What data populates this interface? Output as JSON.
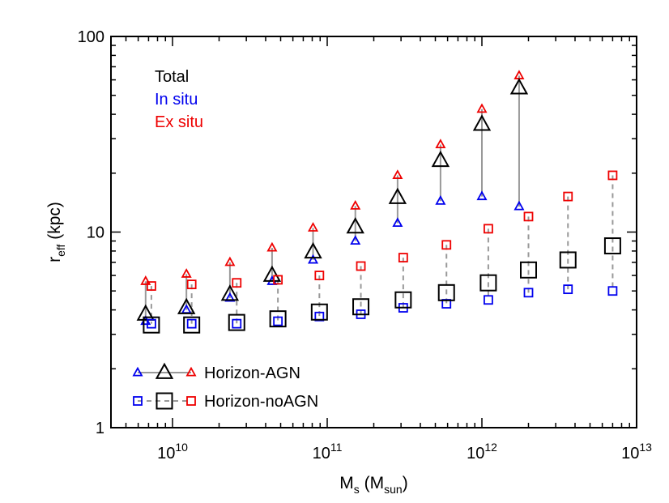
{
  "chart_data": {
    "type": "scatter",
    "xlabel": {
      "main": "M",
      "main_sub": "s",
      "paren": "M",
      "paren_sub": "sun"
    },
    "ylabel": {
      "main": "r",
      "main_sub": "eff",
      "rest": "(kpc)"
    },
    "x_scale": "log",
    "y_scale": "log",
    "xlim": [
      4000000000.0,
      10000000000000.0
    ],
    "ylim": [
      1,
      100
    ],
    "x_ticks": [
      {
        "base": "10",
        "exp": "10"
      },
      {
        "base": "10",
        "exp": "11"
      },
      {
        "base": "10",
        "exp": "12"
      },
      {
        "base": "10",
        "exp": "13"
      }
    ],
    "y_ticks": [
      "1",
      "10",
      "100"
    ],
    "legend_top": [
      {
        "label": "Total",
        "color": "#000000"
      },
      {
        "label": "In situ",
        "color": "#0000ee"
      },
      {
        "label": "Ex situ",
        "color": "#ee0000"
      }
    ],
    "legend_bottom": [
      {
        "label": "Horizon-AGN",
        "marker": "triangle",
        "line": "solid"
      },
      {
        "label": "Horizon-noAGN",
        "marker": "square",
        "line": "dashed"
      }
    ],
    "colors": {
      "total": "#000000",
      "in_situ": "#0000ee",
      "ex_situ": "#ee0000",
      "connector": "#999999"
    },
    "series": [
      {
        "name": "Horizon-AGN",
        "marker": "triangle",
        "points": [
          {
            "x": 6700000000.0,
            "total": 3.8,
            "in_situ": 3.5,
            "ex_situ": 5.6
          },
          {
            "x": 12300000000.0,
            "total": 4.1,
            "in_situ": 4.0,
            "ex_situ": 6.1
          },
          {
            "x": 23500000000.0,
            "total": 4.8,
            "in_situ": 4.6,
            "ex_situ": 7.0
          },
          {
            "x": 44000000000.0,
            "total": 6.0,
            "in_situ": 5.6,
            "ex_situ": 8.3
          },
          {
            "x": 81000000000.0,
            "total": 7.9,
            "in_situ": 7.2,
            "ex_situ": 10.5
          },
          {
            "x": 152000000000.0,
            "total": 10.6,
            "in_situ": 9.0,
            "ex_situ": 13.6
          },
          {
            "x": 285000000000.0,
            "total": 15.0,
            "in_situ": 11.1,
            "ex_situ": 19.5
          },
          {
            "x": 540000000000.0,
            "total": 23.2,
            "in_situ": 14.4,
            "ex_situ": 28.0
          },
          {
            "x": 1000000000000.0,
            "total": 35.5,
            "in_situ": 15.2,
            "ex_situ": 42.5
          },
          {
            "x": 1740000000000.0,
            "total": 54.5,
            "in_situ": 13.5,
            "ex_situ": 63.0
          }
        ]
      },
      {
        "name": "Horizon-noAGN",
        "marker": "square",
        "points": [
          {
            "x": 7300000000.0,
            "total": 3.35,
            "in_situ": 3.4,
            "ex_situ": 5.3
          },
          {
            "x": 13300000000.0,
            "total": 3.35,
            "in_situ": 3.4,
            "ex_situ": 5.4
          },
          {
            "x": 26000000000.0,
            "total": 3.45,
            "in_situ": 3.4,
            "ex_situ": 5.5
          },
          {
            "x": 48000000000.0,
            "total": 3.6,
            "in_situ": 3.5,
            "ex_situ": 5.7
          },
          {
            "x": 89000000000.0,
            "total": 3.9,
            "in_situ": 3.7,
            "ex_situ": 6.0
          },
          {
            "x": 165000000000.0,
            "total": 4.15,
            "in_situ": 3.8,
            "ex_situ": 6.7
          },
          {
            "x": 310000000000.0,
            "total": 4.5,
            "in_situ": 4.1,
            "ex_situ": 7.4
          },
          {
            "x": 590000000000.0,
            "total": 4.9,
            "in_situ": 4.3,
            "ex_situ": 8.6
          },
          {
            "x": 1100000000000.0,
            "total": 5.5,
            "in_situ": 4.5,
            "ex_situ": 10.4
          },
          {
            "x": 2000000000000.0,
            "total": 6.4,
            "in_situ": 4.9,
            "ex_situ": 12.0
          },
          {
            "x": 3600000000000.0,
            "total": 7.2,
            "in_situ": 5.1,
            "ex_situ": 15.2
          },
          {
            "x": 7000000000000.0,
            "total": 8.5,
            "in_situ": 5.0,
            "ex_situ": 19.5
          }
        ]
      }
    ]
  }
}
